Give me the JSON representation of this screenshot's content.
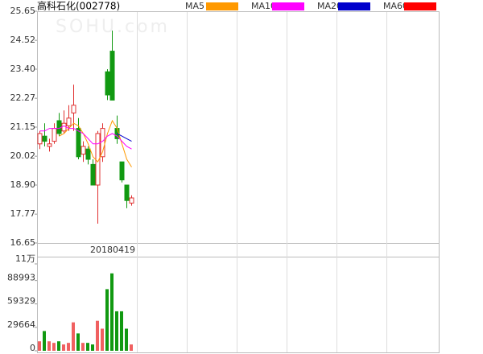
{
  "chart_data": [
    {
      "type": "candlestick",
      "title": "高科石化(002778)",
      "watermark": "SOHU.com",
      "ylim": [
        16.65,
        25.65
      ],
      "yticks": [
        16.65,
        17.77,
        {
          "value": 18.9,
          "label": "18.90"
        },
        20.02,
        21.15,
        22.27,
        {
          "value": 23.4,
          "label": "23.40"
        },
        24.52,
        25.65
      ],
      "up_color": "#e03030",
      "down_color": "#119911",
      "open": [
        20.5,
        20.8,
        20.4,
        20.6,
        21.4,
        21.0,
        21.2,
        21.7,
        21.1,
        20.1,
        20.3,
        19.7,
        18.9,
        20.0,
        23.3,
        24.1,
        21.1,
        19.8,
        18.9,
        18.2
      ],
      "high": [
        21.0,
        21.3,
        20.7,
        21.3,
        21.7,
        21.8,
        22.0,
        22.8,
        21.5,
        20.6,
        20.4,
        19.9,
        21.0,
        21.3,
        23.4,
        24.9,
        21.6,
        19.8,
        18.9,
        18.5
      ],
      "low": [
        20.3,
        20.4,
        20.2,
        20.5,
        20.8,
        20.9,
        21.0,
        21.0,
        19.9,
        19.8,
        19.7,
        18.9,
        17.4,
        19.8,
        22.2,
        22.2,
        20.5,
        19.0,
        18.0,
        18.1
      ],
      "close": [
        20.9,
        20.6,
        20.5,
        21.1,
        20.9,
        21.3,
        21.5,
        22.0,
        20.0,
        20.4,
        19.9,
        18.9,
        20.9,
        21.1,
        22.4,
        22.2,
        20.7,
        19.1,
        18.3,
        18.4
      ],
      "series": [
        {
          "name": "MA5",
          "color": "#ff9900",
          "values": [
            null,
            null,
            null,
            null,
            20.8,
            20.9,
            21.1,
            21.3,
            21.2,
            20.9,
            20.5,
            20.0,
            19.8,
            20.2,
            20.9,
            21.4,
            21.1,
            20.5,
            19.9,
            19.6
          ]
        },
        {
          "name": "MA10",
          "color": "#ff00ff",
          "values": [
            21.0,
            21.0,
            21.1,
            21.1,
            21.1,
            21.2,
            21.1,
            21.1,
            21.0,
            20.9,
            20.7,
            20.5,
            20.5,
            20.6,
            20.8,
            20.9,
            20.8,
            20.6,
            20.4,
            20.3
          ]
        },
        {
          "name": "MA20",
          "color": "#0000cc",
          "values": [
            null,
            null,
            null,
            null,
            null,
            null,
            null,
            null,
            null,
            null,
            null,
            null,
            null,
            null,
            null,
            null,
            20.9,
            20.8,
            20.7,
            20.6
          ]
        },
        {
          "name": "MA60",
          "color": "#ff0000",
          "values": [
            null,
            null,
            null,
            null,
            null,
            null,
            null,
            null,
            null,
            null,
            null,
            null,
            null,
            null,
            null,
            null,
            null,
            null,
            null,
            null
          ]
        }
      ]
    },
    {
      "type": "volume",
      "date_label": "20180419",
      "ylim": [
        0,
        110000
      ],
      "yticks": [
        0,
        29664,
        59329,
        88993,
        {
          "value": 110000,
          "label": "11万"
        }
      ],
      "values": [
        12000,
        25000,
        12000,
        10000,
        12000,
        8000,
        10000,
        36000,
        22000,
        10000,
        10000,
        8000,
        38000,
        28000,
        78000,
        98000,
        50000,
        50000,
        28000,
        8000
      ]
    }
  ]
}
